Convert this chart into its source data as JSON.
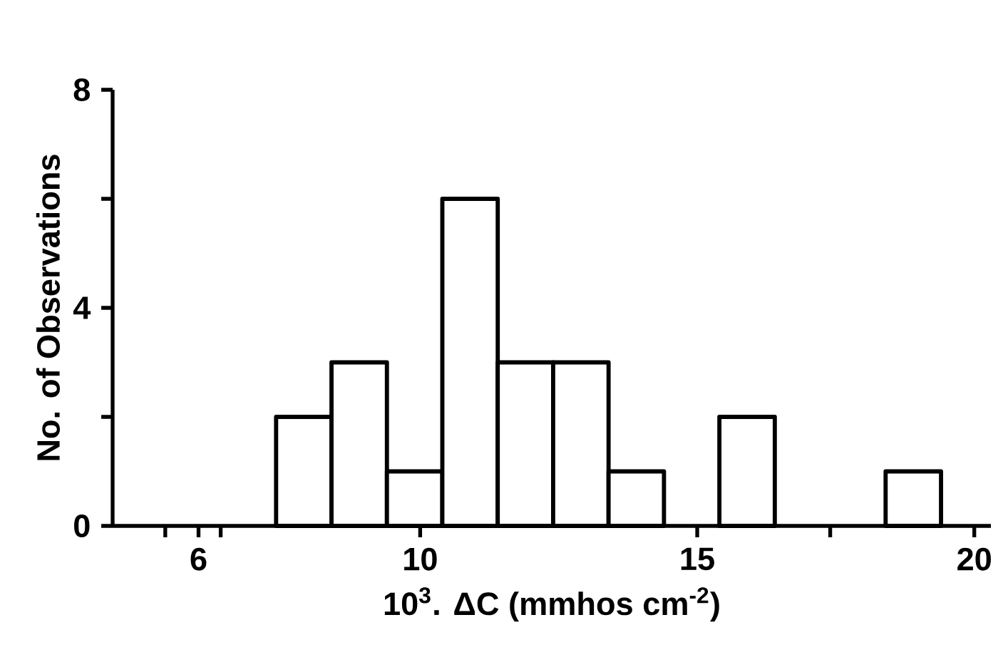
{
  "chart_data": {
    "type": "histogram",
    "xlabel": "10$^{3}$. ΔC (mmhos cm$^{-2}$)",
    "ylabel": "No. of Observations",
    "bins": [
      7.4,
      8.4,
      9.4,
      10.4,
      11.4,
      12.4,
      13.4,
      14.4,
      15.4,
      16.4,
      17.4,
      18.4,
      19.4
    ],
    "values": [
      2,
      3,
      1,
      6,
      3,
      3,
      1,
      0,
      2,
      0,
      0,
      1
    ],
    "color": "#ffffff",
    "xlim": [
      4.45,
      20.3
    ],
    "xticks": [
      {
        "value": 5.4,
        "label": null
      },
      6,
      {
        "value": 6.4,
        "label": null
      },
      10,
      15,
      {
        "value": 17.4,
        "label": null
      },
      20
    ],
    "ylim": [
      0,
      8
    ],
    "yticks": [
      0,
      {
        "value": 2,
        "label": null
      },
      4,
      {
        "value": 6,
        "label": null
      },
      8
    ]
  }
}
